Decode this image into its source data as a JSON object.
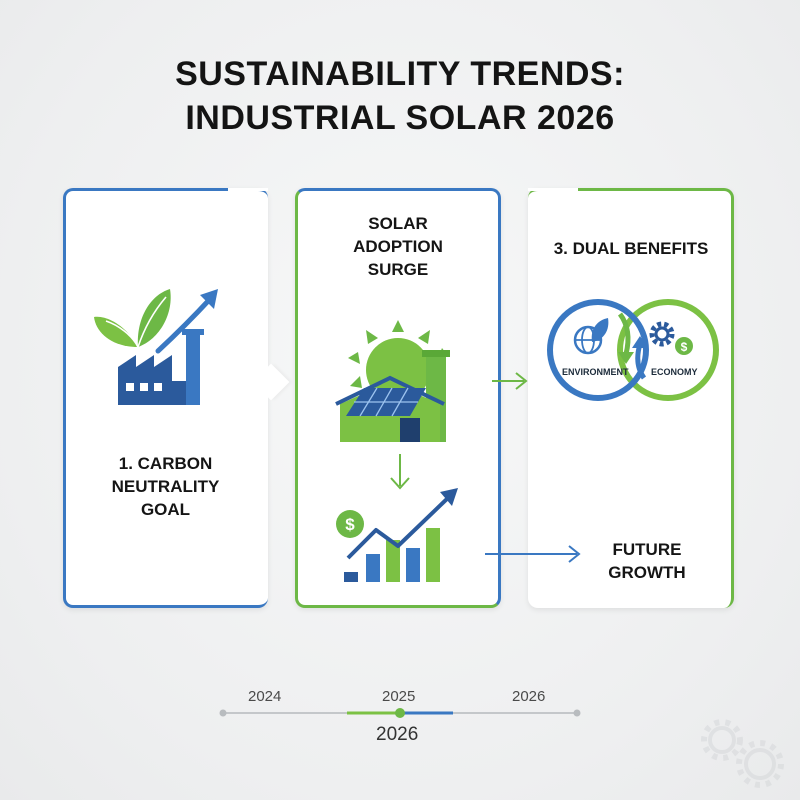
{
  "title": {
    "line1": "SUSTAINABILITY TRENDS:",
    "line2": "INDUSTRIAL SOLAR 2026"
  },
  "panels": {
    "carbon": {
      "label_line1": "1. CARBON",
      "label_line2": "NEUTRALITY",
      "label_line3": "GOAL",
      "icons": [
        "leaf-icon",
        "factory-icon",
        "growth-arrow-icon"
      ]
    },
    "solar": {
      "label_line1": "SOLAR",
      "label_line2": "ADOPTION",
      "label_line3": "SURGE",
      "icons": [
        "sun-icon",
        "solar-panel-icon",
        "factory-icon",
        "bar-chart-icon",
        "dollar-icon"
      ]
    },
    "benefits": {
      "label": "3. DUAL BENEFITS",
      "environment_label": "ENVIRONMENT",
      "economy_label": "ECONOMY",
      "future_line1": "FUTURE",
      "future_line2": "GROWTH",
      "icons": [
        "globe-leaf-icon",
        "gear-icon",
        "dollar-icon",
        "cycle-arrows-icon"
      ]
    }
  },
  "timeline": {
    "ticks": [
      "2024",
      "2025",
      "2026"
    ],
    "current": "2026"
  },
  "colors": {
    "blue": "#3a78c2",
    "green": "#6db846",
    "dark_blue": "#2b5a9c"
  }
}
